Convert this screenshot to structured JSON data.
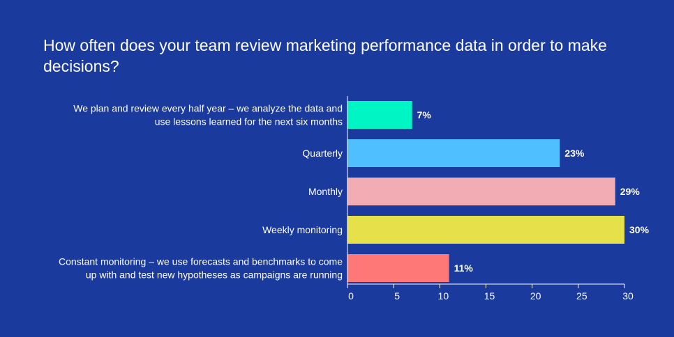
{
  "chart_data": {
    "type": "bar",
    "orientation": "horizontal",
    "title": "How often does your team review marketing performance data in order to make decisions?",
    "xlabel": "",
    "ylabel": "",
    "xlim": [
      0,
      30
    ],
    "xticks": [
      0,
      5,
      10,
      15,
      20,
      25,
      30
    ],
    "grid": false,
    "categories": [
      [
        "We plan and review every half year – we analyze the data and",
        "use lessons learned for the next six months"
      ],
      [
        "Quarterly"
      ],
      [
        "Monthly"
      ],
      [
        "Weekly monitoring"
      ],
      [
        "Constant monitoring – we use forecasts and benchmarks to come",
        "up with and test new hypotheses as campaigns are running"
      ]
    ],
    "values": [
      7,
      23,
      29,
      30,
      11
    ],
    "value_labels": [
      "7%",
      "23%",
      "29%",
      "30%",
      "11%"
    ],
    "colors": [
      "#00f5c4",
      "#4fbfff",
      "#f2adb4",
      "#e6e04a",
      "#ff7878"
    ],
    "background": "#1a3a9e",
    "axis_color": "#ffffff"
  }
}
